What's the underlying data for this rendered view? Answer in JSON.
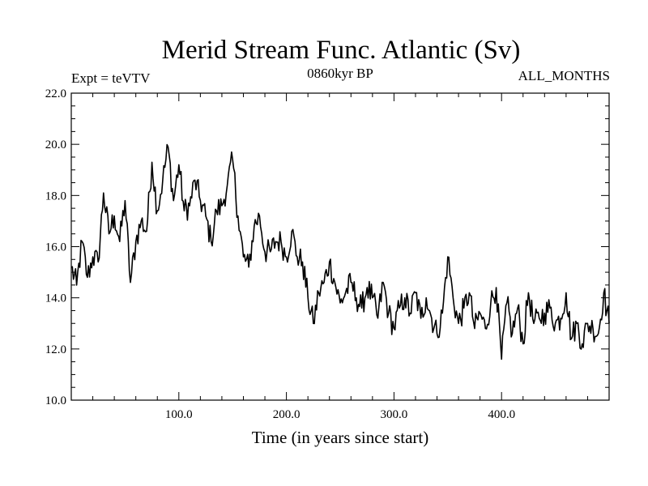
{
  "chart_data": {
    "type": "line",
    "title": "Merid Stream Func. Atlantic (Sv)",
    "subtitle_left": "Expt = teVTV",
    "subtitle_center": "0860kyr BP",
    "subtitle_right": "ALL_MONTHS",
    "xlabel": "Time (in years since start)",
    "ylabel": "",
    "xlim": [
      0,
      500
    ],
    "ylim": [
      10.0,
      22.0
    ],
    "x_ticks": [
      100,
      200,
      300,
      400
    ],
    "x_tick_labels": [
      "100.0",
      "200.0",
      "300.0",
      "400.0"
    ],
    "y_ticks": [
      10,
      12,
      14,
      16,
      18,
      20,
      22
    ],
    "y_tick_labels": [
      "10.0",
      "12.0",
      "14.0",
      "16.0",
      "18.0",
      "20.0",
      "22.0"
    ],
    "grid": false,
    "series": [
      {
        "name": "Merid Stream Func. Atlantic",
        "x": [
          0,
          5,
          10,
          15,
          20,
          25,
          30,
          35,
          40,
          45,
          50,
          55,
          60,
          65,
          70,
          75,
          80,
          85,
          90,
          95,
          100,
          105,
          110,
          115,
          120,
          125,
          130,
          135,
          140,
          145,
          150,
          155,
          160,
          165,
          170,
          175,
          180,
          185,
          190,
          195,
          200,
          205,
          210,
          215,
          220,
          225,
          230,
          235,
          240,
          245,
          250,
          255,
          260,
          265,
          270,
          275,
          280,
          285,
          290,
          295,
          300,
          305,
          310,
          315,
          320,
          325,
          330,
          335,
          340,
          345,
          350,
          355,
          360,
          365,
          370,
          375,
          380,
          385,
          390,
          395,
          400,
          405,
          410,
          415,
          420,
          425,
          430,
          435,
          440,
          445,
          450,
          455,
          460,
          465,
          470,
          475,
          480,
          485,
          490,
          495,
          500
        ],
        "y": [
          15.2,
          14.5,
          16.2,
          14.8,
          15.6,
          15.4,
          18.1,
          16.5,
          17.2,
          16.2,
          17.8,
          14.6,
          16.2,
          17.0,
          16.6,
          19.3,
          17.4,
          18.6,
          19.9,
          17.8,
          19.2,
          17.4,
          17.6,
          18.6,
          17.8,
          17.2,
          16.2,
          17.4,
          17.6,
          18.4,
          19.4,
          17.2,
          15.6,
          15.2,
          16.8,
          17.2,
          15.8,
          15.8,
          16.2,
          16.2,
          15.6,
          16.6,
          15.6,
          15.4,
          14.0,
          13.0,
          14.2,
          14.6,
          15.4,
          14.6,
          13.8,
          14.2,
          14.6,
          14.0,
          13.6,
          14.4,
          14.0,
          13.2,
          14.6,
          13.4,
          12.8,
          13.6,
          14.0,
          13.4,
          14.2,
          13.2,
          14.0,
          13.2,
          12.6,
          13.4,
          15.6,
          14.0,
          13.0,
          13.6,
          14.2,
          12.8,
          13.4,
          12.8,
          13.8,
          14.4,
          11.6,
          13.8,
          12.6,
          13.6,
          12.2,
          14.2,
          13.0,
          13.2,
          13.4,
          13.6,
          13.0,
          13.2,
          14.2,
          12.4,
          13.0,
          12.2,
          13.0,
          12.8,
          12.6,
          14.2,
          13.0
        ]
      }
    ]
  }
}
